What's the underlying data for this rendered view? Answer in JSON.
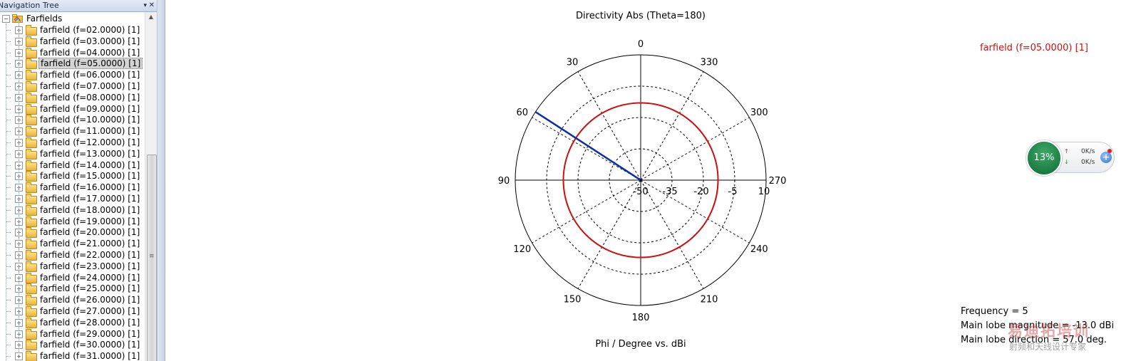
{
  "navigation": {
    "header_title": "Navigation Tree",
    "pin_glyph": "▾",
    "close_glyph": "✕",
    "root": {
      "expander": "−",
      "label": "Farfields"
    },
    "items": [
      {
        "label": "farfield (f=02.0000) [1]",
        "selected": false
      },
      {
        "label": "farfield (f=03.0000) [1]",
        "selected": false
      },
      {
        "label": "farfield (f=04.0000) [1]",
        "selected": false
      },
      {
        "label": "farfield (f=05.0000) [1]",
        "selected": true
      },
      {
        "label": "farfield (f=06.0000) [1]",
        "selected": false
      },
      {
        "label": "farfield (f=07.0000) [1]",
        "selected": false
      },
      {
        "label": "farfield (f=08.0000) [1]",
        "selected": false
      },
      {
        "label": "farfield (f=09.0000) [1]",
        "selected": false
      },
      {
        "label": "farfield (f=10.0000) [1]",
        "selected": false
      },
      {
        "label": "farfield (f=11.0000) [1]",
        "selected": false
      },
      {
        "label": "farfield (f=12.0000) [1]",
        "selected": false
      },
      {
        "label": "farfield (f=13.0000) [1]",
        "selected": false
      },
      {
        "label": "farfield (f=14.0000) [1]",
        "selected": false
      },
      {
        "label": "farfield (f=15.0000) [1]",
        "selected": false
      },
      {
        "label": "farfield (f=16.0000) [1]",
        "selected": false
      },
      {
        "label": "farfield (f=17.0000) [1]",
        "selected": false
      },
      {
        "label": "farfield (f=18.0000) [1]",
        "selected": false
      },
      {
        "label": "farfield (f=19.0000) [1]",
        "selected": false
      },
      {
        "label": "farfield (f=20.0000) [1]",
        "selected": false
      },
      {
        "label": "farfield (f=21.0000) [1]",
        "selected": false
      },
      {
        "label": "farfield (f=22.0000) [1]",
        "selected": false
      },
      {
        "label": "farfield (f=23.0000) [1]",
        "selected": false
      },
      {
        "label": "farfield (f=24.0000) [1]",
        "selected": false
      },
      {
        "label": "farfield (f=25.0000) [1]",
        "selected": false
      },
      {
        "label": "farfield (f=26.0000) [1]",
        "selected": false
      },
      {
        "label": "farfield (f=27.0000) [1]",
        "selected": false
      },
      {
        "label": "farfield (f=28.0000) [1]",
        "selected": false
      },
      {
        "label": "farfield (f=29.0000) [1]",
        "selected": false
      },
      {
        "label": "farfield (f=30.0000) [1]",
        "selected": false
      },
      {
        "label": "farfield (f=31.0000) [1]",
        "selected": false
      }
    ],
    "item_expander": "+",
    "scroll_up_glyph": "▲",
    "scroll_grip_glyph": "≡"
  },
  "chart_data": {
    "type": "polar",
    "title": "Directivity Abs (Theta=180)",
    "xlabel": "Phi / Degree vs. dBi",
    "angular_ticks": [
      0,
      30,
      60,
      90,
      120,
      150,
      180,
      210,
      240,
      270,
      300,
      330
    ],
    "angular_direction": "counterclockwise",
    "zero_location": "top",
    "radial_ticks": [
      -50,
      -35,
      -20,
      -5,
      10
    ],
    "radial_range": [
      -50,
      10
    ],
    "grid": true,
    "series": [
      {
        "name": "farfield (f=05.0000) [1]",
        "color": "#cc1111",
        "constant_value": -13.0
      }
    ],
    "main_lobe_marker": {
      "angle": 57.0,
      "color": "#0b2fa8"
    },
    "legend_position": "top-right",
    "info": {
      "frequency": "Frequency = 5",
      "magnitude": "Main lobe magnitude = -13.0 dBi",
      "direction": "Main lobe direction =   57.0 deg."
    }
  },
  "net_monitor": {
    "percent": "13%",
    "up_glyph": "↑",
    "down_glyph": "↓",
    "up_rate": "0K/s",
    "down_rate": "0K/s",
    "plus_glyph": "+",
    "colors": {
      "ring": "#1b7d45",
      "up": "#d03030",
      "down": "#2a9a40"
    }
  },
  "watermark": {
    "text_large": "易迪拓培训",
    "text_small": "射频和天线设计专家"
  }
}
